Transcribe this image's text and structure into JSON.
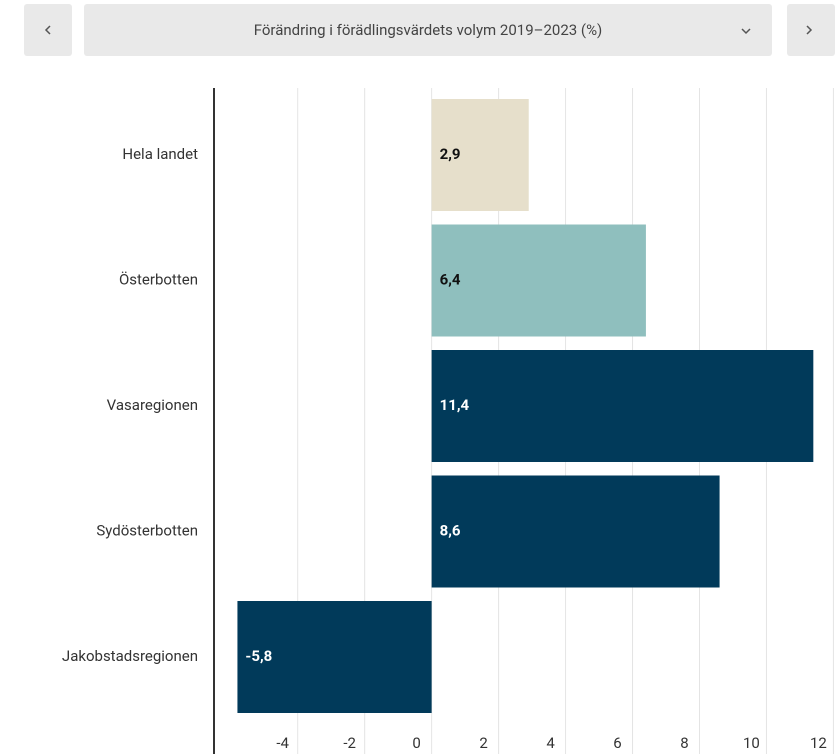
{
  "chart_data": {
    "type": "barh",
    "title": "Förändring i förädlingsvärdets volym 2019–2023 (%)",
    "categories": [
      "Hela landet",
      "Österbotten",
      "Vasaregionen",
      "Sydösterbotten",
      "Jakobstadsregionen"
    ],
    "values": [
      2.9,
      6.4,
      11.4,
      8.6,
      -5.8
    ],
    "value_labels": [
      "2,9",
      "6,4",
      "11,4",
      "8,6",
      "-5,8"
    ],
    "colors": [
      "#e6dfcb",
      "#8fbfbe",
      "#013a5a",
      "#013a5a",
      "#013a5a"
    ],
    "xlim": [
      -6.5,
      11.45
    ],
    "xticks": [
      -4,
      -2,
      0,
      2,
      4,
      6,
      8,
      10,
      12
    ],
    "grid": true
  }
}
